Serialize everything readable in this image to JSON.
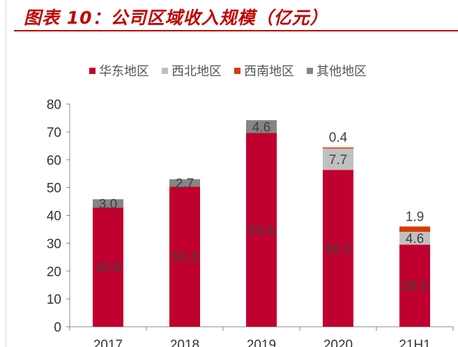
{
  "title": "图表 10：公司区域收入规模（亿元）",
  "chart_data": {
    "type": "bar",
    "stacked": true,
    "title": "图表 10：公司区域收入规模（亿元）",
    "categories": [
      "2017",
      "2018",
      "2019",
      "2020",
      "21H1"
    ],
    "series": [
      {
        "name": "华东地区",
        "color": "#c0002f",
        "values": [
          42.8,
          50.3,
          69.6,
          56.3,
          29.5
        ]
      },
      {
        "name": "西北地区",
        "color": "#c0c0c0",
        "values": [
          null,
          null,
          null,
          7.7,
          4.6
        ]
      },
      {
        "name": "西南地区",
        "color": "#d93a00",
        "values": [
          null,
          null,
          null,
          0.4,
          1.9
        ]
      },
      {
        "name": "其他地区",
        "color": "#858585",
        "values": [
          3.0,
          2.7,
          4.6,
          null,
          null
        ]
      }
    ],
    "ylim": [
      0,
      80
    ],
    "yticks": [
      0,
      10,
      20,
      30,
      40,
      50,
      60,
      70,
      80
    ],
    "legend": "top",
    "grid": false
  }
}
